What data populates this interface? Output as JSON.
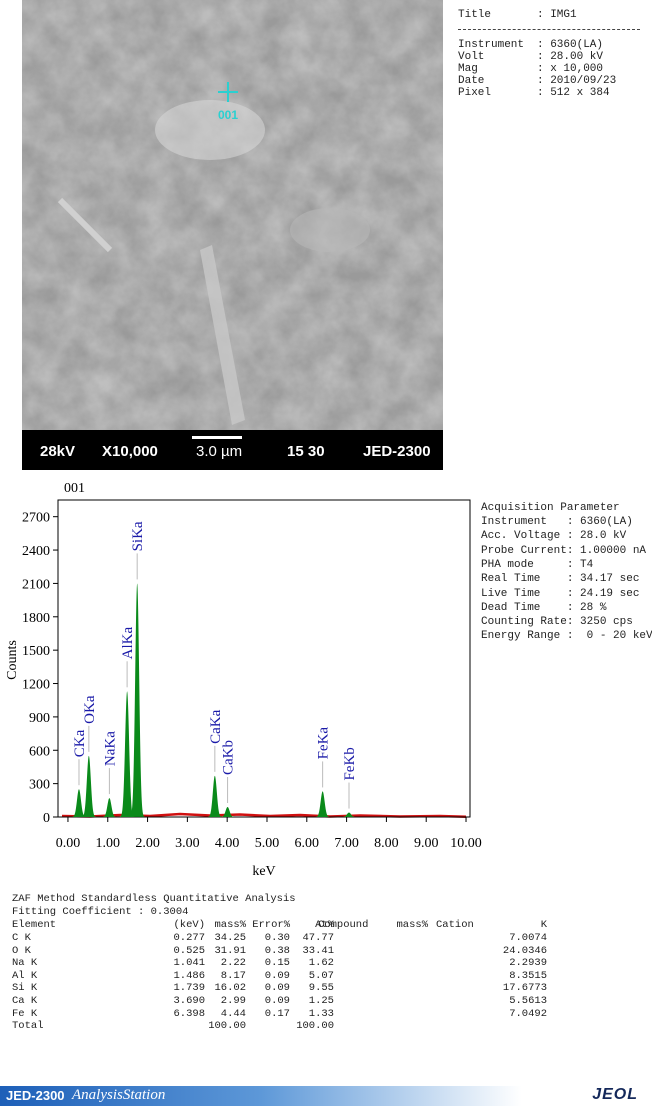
{
  "image": {
    "marker": "001",
    "bar": {
      "voltage": "28kV",
      "mag": "X10,000",
      "scale": "3.0 µm",
      "code": "15 30",
      "model": "JED-2300"
    }
  },
  "info": {
    "rows": [
      {
        "label": "Title",
        "value": ": IMG1"
      },
      {
        "label": "Instrument",
        "value": ": 6360(LA)"
      },
      {
        "label": "Volt",
        "value": ": 28.00 kV"
      },
      {
        "label": "Mag",
        "value": ": x 10,000"
      },
      {
        "label": "Date",
        "value": ": 2010/09/23"
      },
      {
        "label": "Pixel",
        "value": ": 512 x 384"
      }
    ]
  },
  "chart_data": {
    "type": "spectrum",
    "title": "001",
    "x_label": "keV",
    "y_label": "Counts",
    "xlim": [
      -0.25,
      10.1
    ],
    "ylim": [
      0,
      2850
    ],
    "xticks": [
      {
        "value": 0,
        "label": "0.00"
      },
      {
        "value": 1,
        "label": "1.00"
      },
      {
        "value": 2,
        "label": "2.00"
      },
      {
        "value": 3,
        "label": "3.00"
      },
      {
        "value": 4,
        "label": "4.00"
      },
      {
        "value": 5,
        "label": "5.00"
      },
      {
        "value": 6,
        "label": "6.00"
      },
      {
        "value": 7,
        "label": "7.00"
      },
      {
        "value": 8,
        "label": "8.00"
      },
      {
        "value": 9,
        "label": "9.00"
      },
      {
        "value": 10,
        "label": "10.00"
      }
    ],
    "yticks": [
      0,
      300,
      600,
      900,
      1200,
      1500,
      1800,
      2100,
      2400,
      2700
    ],
    "color": "#0a8a1a",
    "label_color": "#1a1aa8",
    "peaks": [
      {
        "label": "CKa",
        "x": 0.277,
        "counts": 250
      },
      {
        "label": "OKa",
        "x": 0.525,
        "counts": 550
      },
      {
        "label": "NaKa",
        "x": 1.041,
        "counts": 170
      },
      {
        "label": "AlKa",
        "x": 1.486,
        "counts": 1130
      },
      {
        "label": "SiKa",
        "x": 1.739,
        "counts": 2100
      },
      {
        "label": "CaKa",
        "x": 3.69,
        "counts": 370
      },
      {
        "label": "CaKb",
        "x": 4.01,
        "counts": 90
      },
      {
        "label": "FeKa",
        "x": 6.398,
        "counts": 230
      },
      {
        "label": "FeKb",
        "x": 7.06,
        "counts": 40
      }
    ]
  },
  "acquisition": {
    "title": "Acquisition Parameter",
    "rows": [
      "Instrument   : 6360(LA)",
      "Acc. Voltage : 28.0 kV",
      "Probe Current: 1.00000 nA",
      "PHA mode     : T4",
      "Real Time    : 34.17 sec",
      "Live Time    : 24.19 sec",
      "Dead Time    : 28 %",
      "Counting Rate: 3250 cps",
      "Energy Range :  0 - 20 keV"
    ]
  },
  "table": {
    "title": "ZAF Method Standardless Quantitative Analysis",
    "subtitle": "Fitting Coefficient : 0.3004",
    "header": [
      "Element",
      "(keV)",
      "mass%",
      "Error%",
      "At%",
      "Compound",
      "mass%",
      "Cation",
      "K"
    ],
    "rows": [
      [
        "C K",
        "0.277",
        "34.25",
        "0.30",
        "47.77",
        null,
        null,
        null,
        "7.0074"
      ],
      [
        "O K",
        "0.525",
        "31.91",
        "0.38",
        "33.41",
        null,
        null,
        null,
        "24.0346"
      ],
      [
        "Na K",
        "1.041",
        "2.22",
        "0.15",
        "1.62",
        null,
        null,
        null,
        "2.2939"
      ],
      [
        "Al K",
        "1.486",
        "8.17",
        "0.09",
        "5.07",
        null,
        null,
        null,
        "8.3515"
      ],
      [
        "Si K",
        "1.739",
        "16.02",
        "0.09",
        "9.55",
        null,
        null,
        null,
        "17.6773"
      ],
      [
        "Ca K",
        "3.690",
        "2.99",
        "0.09",
        "1.25",
        null,
        null,
        null,
        "5.5613"
      ],
      [
        "Fe K",
        "6.398",
        "4.44",
        "0.17",
        "1.33",
        null,
        null,
        null,
        "7.0492"
      ],
      [
        "Total",
        null,
        "100.00",
        null,
        "100.00",
        null,
        null,
        null,
        null
      ]
    ]
  },
  "footer": {
    "product": "JED-2300",
    "suite": "AnalysisStation",
    "brand": "JEOL"
  }
}
